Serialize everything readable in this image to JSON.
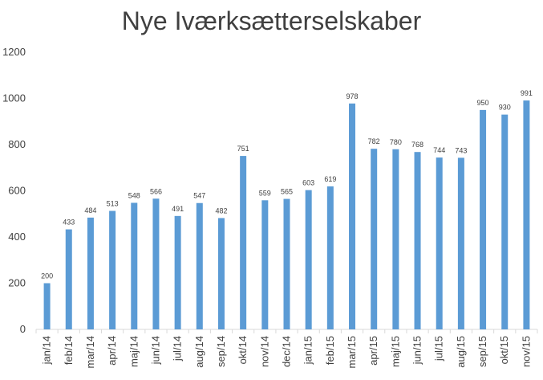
{
  "chart_data": {
    "type": "bar",
    "title": "Nye Iværksætterselskaber",
    "categories": [
      "jan/14",
      "feb/14",
      "mar/14",
      "apr/14",
      "maj/14",
      "jun/14",
      "jul/14",
      "aug/14",
      "sep/14",
      "okt/14",
      "nov/14",
      "dec/14",
      "jan/15",
      "feb/15",
      "mar/15",
      "apr/15",
      "maj/15",
      "jun/15",
      "jul/15",
      "aug/15",
      "sep/15",
      "okt/15",
      "nov/15"
    ],
    "values": [
      200,
      433,
      484,
      513,
      548,
      566,
      491,
      547,
      482,
      751,
      559,
      565,
      603,
      619,
      978,
      782,
      780,
      768,
      744,
      743,
      950,
      930,
      991
    ],
    "ylim": [
      0,
      1200
    ],
    "yticks": [
      0,
      200,
      400,
      600,
      800,
      1000,
      1200
    ],
    "xlabel": "",
    "ylabel": "",
    "bar_color": "#5B9BD5",
    "grid": false,
    "legend": "none"
  }
}
